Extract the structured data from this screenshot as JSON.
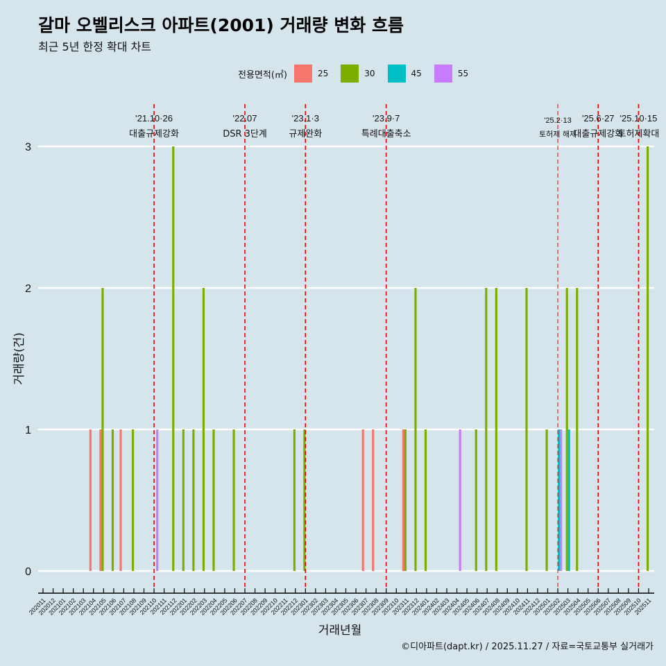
{
  "title": "갈마 오벨리스크 아파트(2001) 거래량 변화 흐름",
  "subtitle": "최근 5년 한정 확대 차트",
  "caption": "©디아파트(dapt.kr) / 2025.11.27 / 자료=국토교통부 실거래가",
  "chart_data": {
    "type": "bar",
    "xlabel": "거래년월",
    "ylabel": "거래량(건)",
    "ylim": [
      0,
      3
    ],
    "yticks": [
      0,
      1,
      2,
      3
    ],
    "legend_title": "전용면적(㎡)",
    "legend_position": "top",
    "grid": true,
    "categories": [
      "202011",
      "202012",
      "202101",
      "202102",
      "202103",
      "202104",
      "202105",
      "202106",
      "202107",
      "202108",
      "202109",
      "202110",
      "202111",
      "202112",
      "202201",
      "202202",
      "202203",
      "202204",
      "202205",
      "202206",
      "202207",
      "202208",
      "202209",
      "202210",
      "202211",
      "202212",
      "202301",
      "202302",
      "202303",
      "202304",
      "202305",
      "202306",
      "202307",
      "202308",
      "202309",
      "202310",
      "202311",
      "202312",
      "202401",
      "202402",
      "202403",
      "202404",
      "202405",
      "202406",
      "202407",
      "202408",
      "202409",
      "202410",
      "202411",
      "202412",
      "202501",
      "202502",
      "202503",
      "202504",
      "202505",
      "202506",
      "202507",
      "202508",
      "202509",
      "202510",
      "202511"
    ],
    "series": [
      {
        "name": "25",
        "color": "#F8766D",
        "points": [
          [
            "202104",
            1
          ],
          [
            "202105",
            1
          ],
          [
            "202107",
            1
          ],
          [
            "202307",
            1
          ],
          [
            "202308",
            1
          ],
          [
            "202311",
            1
          ]
        ]
      },
      {
        "name": "30",
        "color": "#7CAE00",
        "points": [
          [
            "202105",
            2
          ],
          [
            "202106",
            1
          ],
          [
            "202108",
            1
          ],
          [
            "202112",
            3
          ],
          [
            "202201",
            1
          ],
          [
            "202202",
            1
          ],
          [
            "202203",
            2
          ],
          [
            "202204",
            1
          ],
          [
            "202206",
            1
          ],
          [
            "202212",
            1
          ],
          [
            "202301",
            1
          ],
          [
            "202311",
            1
          ],
          [
            "202312",
            2
          ],
          [
            "202401",
            1
          ],
          [
            "202406",
            1
          ],
          [
            "202407",
            2
          ],
          [
            "202408",
            2
          ],
          [
            "202411",
            2
          ],
          [
            "202501",
            1
          ],
          [
            "202503",
            2
          ],
          [
            "202504",
            2
          ],
          [
            "202511",
            3
          ]
        ]
      },
      {
        "name": "45",
        "color": "#00BFC4",
        "points": [
          [
            "202502",
            1
          ],
          [
            "202503",
            1
          ]
        ]
      },
      {
        "name": "55",
        "color": "#C77CFF",
        "points": [
          [
            "202110",
            1
          ],
          [
            "202404",
            1
          ],
          [
            "202502",
            1
          ]
        ]
      }
    ],
    "annotations": [
      {
        "month": "202110",
        "date": "'21.10·26",
        "label": "대출규제강화"
      },
      {
        "month": "202207",
        "date": "'22.07",
        "label": "DSR 3단계"
      },
      {
        "month": "202301",
        "date": "'23.1·3",
        "label": "규제완화"
      },
      {
        "month": "202309",
        "date": "'23.9·7",
        "label": "특례대출축소"
      },
      {
        "month": "202502",
        "date": "'25.2·13",
        "label": "토허제 해제"
      },
      {
        "month": "202506",
        "date": "'25.6·27",
        "label": "대출규제강화"
      },
      {
        "month": "202510",
        "date": "'25.10·15",
        "label": "토허제확대"
      }
    ]
  }
}
